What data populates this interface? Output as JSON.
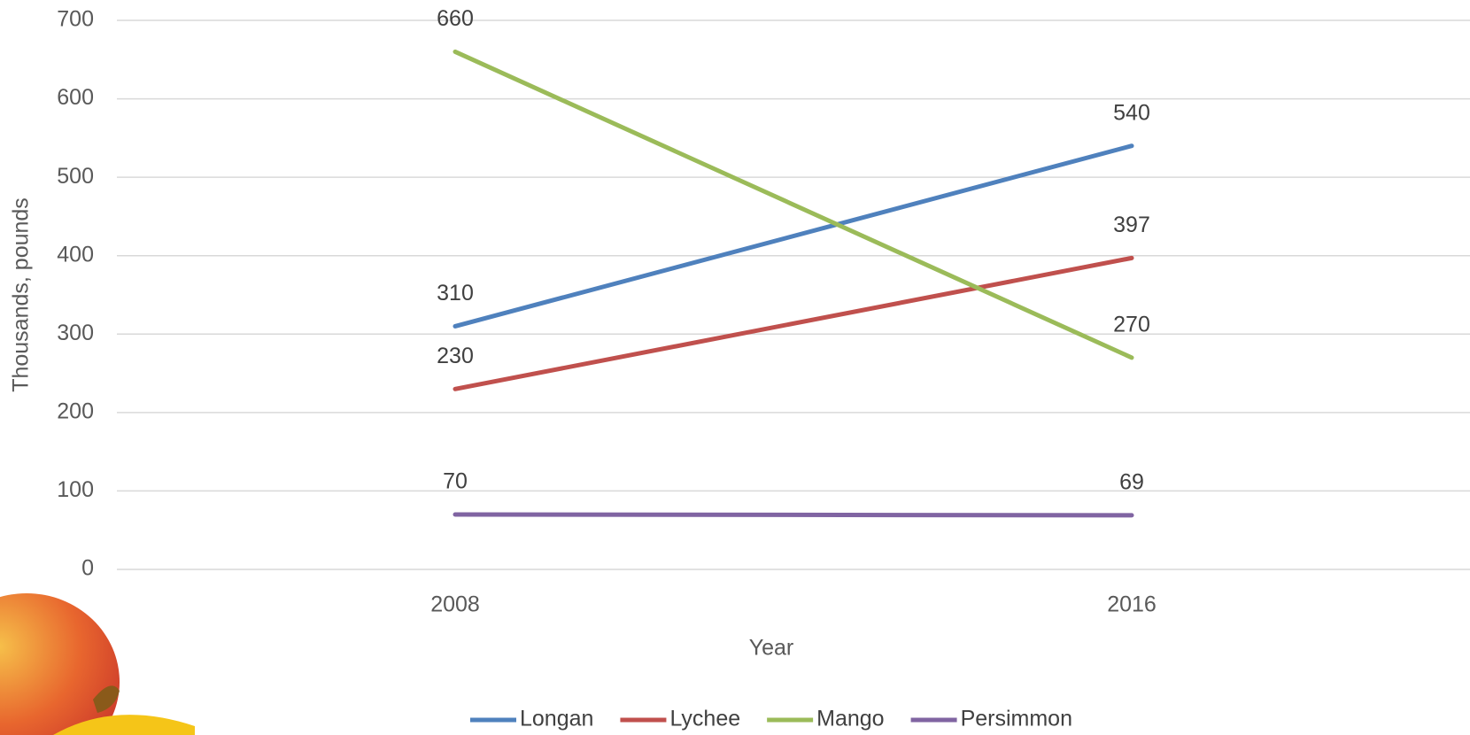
{
  "chart_data": {
    "type": "line",
    "categories": [
      "2008",
      "2016"
    ],
    "series": [
      {
        "name": "Longan",
        "color": "#4f81bd",
        "values": [
          310,
          540
        ]
      },
      {
        "name": "Lychee",
        "color": "#c0504d",
        "values": [
          230,
          397
        ]
      },
      {
        "name": "Mango",
        "color": "#9bbb59",
        "values": [
          660,
          270
        ]
      },
      {
        "name": "Persimmon",
        "color": "#8064a2",
        "values": [
          70,
          69
        ]
      }
    ],
    "ylabel": "Thousands, pounds",
    "xlabel": "Year",
    "ylim": [
      0,
      700
    ],
    "yticks": [
      0,
      100,
      200,
      300,
      400,
      500,
      600,
      700
    ],
    "grid": true,
    "data_labels": true,
    "legend": "bottom"
  }
}
